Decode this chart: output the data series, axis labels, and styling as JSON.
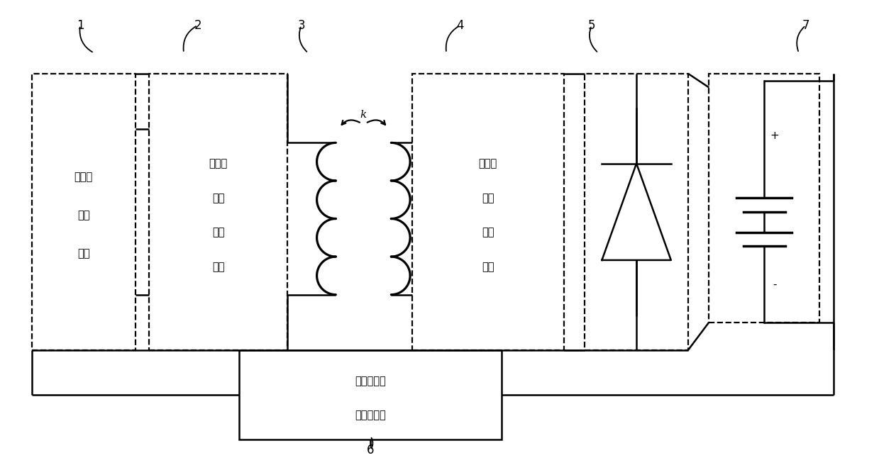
{
  "background_color": "#ffffff",
  "fig_width": 12.39,
  "fig_height": 6.56,
  "dpi": 100,
  "labels": {
    "box1_lines": [
      "可变频",
      "逆变",
      "电源"
    ],
    "box2_lines": [
      "多谐振",
      "原边",
      "补偿",
      "拓扑"
    ],
    "box4_lines": [
      "多谐振",
      "副边",
      "补偿",
      "拓扑"
    ],
    "ctrl_lines": [
      "状态识别及",
      "频率控制器"
    ],
    "k": "k",
    "plus": "+",
    "minus": "-",
    "nums": [
      "1",
      "2",
      "3",
      "4",
      "5",
      "6",
      "7"
    ]
  },
  "colors": {
    "black": "#000000",
    "white": "#ffffff"
  },
  "lw": 1.8,
  "dlw": 1.6
}
